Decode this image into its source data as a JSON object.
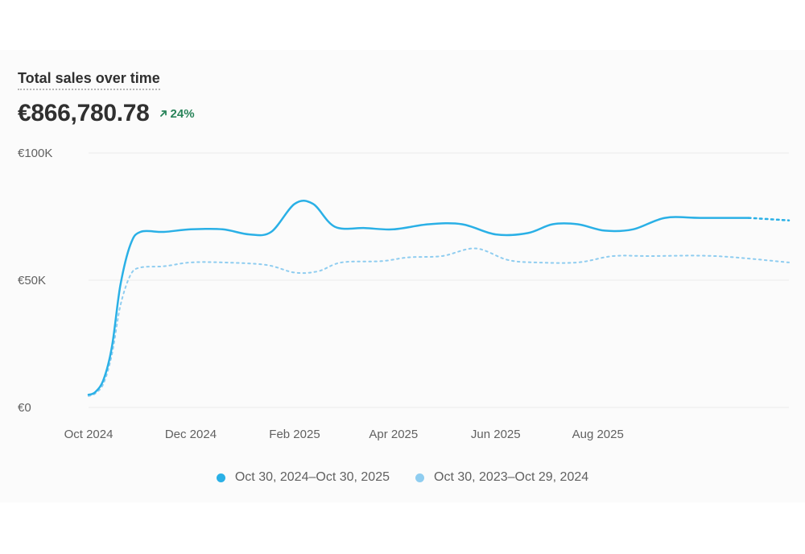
{
  "card": {
    "title": "Total sales over time",
    "total_value": "€866,780.78",
    "change": {
      "value": "24%",
      "direction": "up",
      "icon": "arrow-up-right-icon",
      "color": "#29845a"
    }
  },
  "chart_data": {
    "type": "line",
    "title": "Total sales over time",
    "xlabel": "",
    "ylabel": "",
    "ylim": [
      0,
      100000
    ],
    "y_ticks": [
      {
        "value": 0,
        "label": "€0"
      },
      {
        "value": 50000,
        "label": "€50K"
      },
      {
        "value": 100000,
        "label": "€100K"
      }
    ],
    "x_range": [
      "2024-10-01",
      "2025-11-23"
    ],
    "x_ticks": [
      {
        "date": "2024-10-01",
        "label": "Oct 2024"
      },
      {
        "date": "2024-12-01",
        "label": "Dec 2024"
      },
      {
        "date": "2025-02-01",
        "label": "Feb 2025"
      },
      {
        "date": "2025-04-01",
        "label": "Apr 2025"
      },
      {
        "date": "2025-06-01",
        "label": "Jun 2025"
      },
      {
        "date": "2025-08-01",
        "label": "Aug 2025"
      }
    ],
    "grid": true,
    "legend_position": "bottom-center",
    "series": [
      {
        "name": "Oct 30, 2024–Oct 30, 2025",
        "color": "#2ab0e6",
        "style": "solid",
        "projection_style": "dotted",
        "projection_from": "2025-10-30",
        "points": [
          [
            "2024-10-01",
            5000
          ],
          [
            "2024-10-05",
            6000
          ],
          [
            "2024-10-10",
            11000
          ],
          [
            "2024-10-15",
            24000
          ],
          [
            "2024-10-20",
            48000
          ],
          [
            "2024-10-26",
            64000
          ],
          [
            "2024-11-01",
            69000
          ],
          [
            "2024-11-15",
            69000
          ],
          [
            "2024-12-01",
            70000
          ],
          [
            "2024-12-20",
            70000
          ],
          [
            "2025-01-05",
            68000
          ],
          [
            "2025-01-18",
            69000
          ],
          [
            "2025-02-01",
            80000
          ],
          [
            "2025-02-12",
            80000
          ],
          [
            "2025-02-25",
            71000
          ],
          [
            "2025-03-15",
            70500
          ],
          [
            "2025-04-01",
            70000
          ],
          [
            "2025-04-22",
            72000
          ],
          [
            "2025-05-12",
            72000
          ],
          [
            "2025-06-01",
            68000
          ],
          [
            "2025-06-20",
            68500
          ],
          [
            "2025-07-05",
            72000
          ],
          [
            "2025-07-20",
            72000
          ],
          [
            "2025-08-05",
            69500
          ],
          [
            "2025-08-22",
            70000
          ],
          [
            "2025-09-10",
            74500
          ],
          [
            "2025-10-01",
            74500
          ],
          [
            "2025-10-30",
            74500
          ],
          [
            "2025-11-23",
            73500
          ]
        ]
      },
      {
        "name": "Oct 30, 2023–Oct 29, 2024",
        "color": "#8fcdf0",
        "style": "dotted",
        "points": [
          [
            "2024-10-01",
            4500
          ],
          [
            "2024-10-05",
            5500
          ],
          [
            "2024-10-10",
            9500
          ],
          [
            "2024-10-15",
            21000
          ],
          [
            "2024-10-20",
            40000
          ],
          [
            "2024-10-26",
            52000
          ],
          [
            "2024-11-01",
            55000
          ],
          [
            "2024-11-15",
            55500
          ],
          [
            "2024-12-01",
            57000
          ],
          [
            "2024-12-20",
            57000
          ],
          [
            "2025-01-15",
            56000
          ],
          [
            "2025-02-01",
            53000
          ],
          [
            "2025-02-15",
            53500
          ],
          [
            "2025-03-01",
            57000
          ],
          [
            "2025-03-25",
            57500
          ],
          [
            "2025-04-10",
            59000
          ],
          [
            "2025-04-30",
            59500
          ],
          [
            "2025-05-20",
            62500
          ],
          [
            "2025-06-08",
            58000
          ],
          [
            "2025-06-25",
            57000
          ],
          [
            "2025-07-20",
            57000
          ],
          [
            "2025-08-10",
            59500
          ],
          [
            "2025-09-01",
            59500
          ],
          [
            "2025-10-10",
            59500
          ],
          [
            "2025-11-23",
            57000
          ]
        ]
      }
    ]
  }
}
